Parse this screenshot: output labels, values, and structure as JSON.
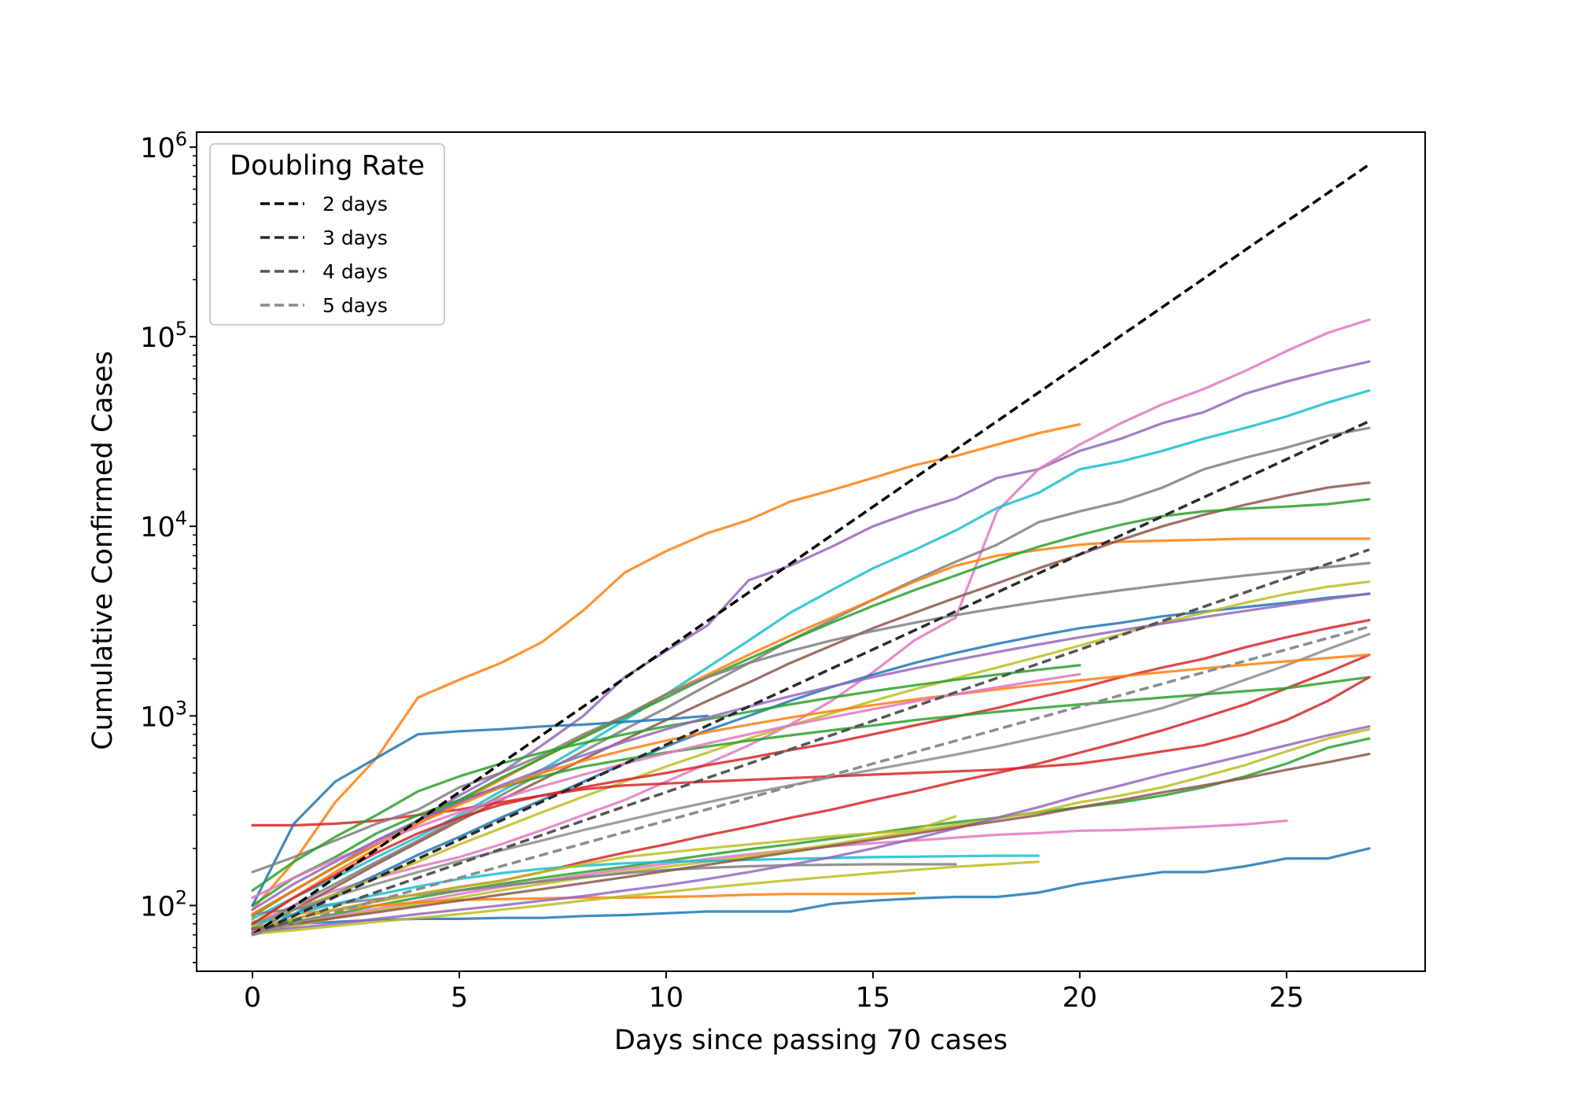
{
  "chart_data": {
    "type": "line",
    "title": "",
    "xlabel": "Days since passing 70 cases",
    "ylabel": "Cumulative Confirmed Cases",
    "x_scale": "linear",
    "y_scale": "log",
    "xlim": [
      -1.35,
      28.35
    ],
    "ylim": [
      45,
      1200000
    ],
    "x_ticks": [
      0,
      5,
      10,
      15,
      20,
      25
    ],
    "y_ticks": [
      {
        "value": 100,
        "base": "10",
        "exp": "2"
      },
      {
        "value": 1000,
        "base": "10",
        "exp": "3"
      },
      {
        "value": 10000,
        "base": "10",
        "exp": "4"
      },
      {
        "value": 100000,
        "base": "10",
        "exp": "5"
      },
      {
        "value": 1000000,
        "base": "10",
        "exp": "6"
      }
    ],
    "grid": false,
    "legend": {
      "title": "Doubling Rate",
      "placement": "top-left",
      "entries": [
        "2 days",
        "3 days",
        "4 days",
        "5 days"
      ]
    },
    "reference_lines": [
      {
        "name": "2 days",
        "doubling_days": 2,
        "start": 70,
        "x": [
          0,
          27
        ],
        "color": "#000000"
      },
      {
        "name": "3 days",
        "doubling_days": 3,
        "start": 70,
        "x": [
          0,
          27
        ],
        "color": "#2b2b2b"
      },
      {
        "name": "4 days",
        "doubling_days": 4,
        "start": 70,
        "x": [
          0,
          27
        ],
        "color": "#555555"
      },
      {
        "name": "5 days",
        "doubling_days": 5,
        "start": 70,
        "x": [
          0,
          27
        ],
        "color": "#8c8c8c"
      }
    ],
    "series": [
      {
        "color": "#ff7f0e",
        "values": [
          95,
          170,
          350,
          600,
          1250,
          1550,
          1900,
          2450,
          3600,
          5700,
          7400,
          9200,
          10800,
          13500,
          15500,
          18000,
          21000,
          23500,
          27000,
          31000,
          34500
        ]
      },
      {
        "color": "#9467bd",
        "values": [
          90,
          120,
          160,
          220,
          280,
          380,
          500,
          700,
          1000,
          1600,
          2200,
          3000,
          5200,
          6200,
          7800,
          10000,
          12000,
          14000,
          18000,
          20000,
          25000,
          29000,
          35000,
          40000,
          50000,
          58000,
          66000,
          74000
        ]
      },
      {
        "color": "#e377c2",
        "values": [
          80,
          100,
          120,
          140,
          160,
          180,
          210,
          250,
          300,
          360,
          450,
          560,
          700,
          900,
          1200,
          1700,
          2500,
          3300,
          12000,
          20000,
          27000,
          35000,
          44000,
          53000,
          66000,
          84000,
          105000,
          123000
        ]
      },
      {
        "color": "#17becf",
        "values": [
          85,
          110,
          140,
          180,
          230,
          300,
          400,
          520,
          700,
          950,
          1300,
          1800,
          2500,
          3500,
          4600,
          6000,
          7500,
          9500,
          12500,
          15000,
          20000,
          22000,
          25000,
          29000,
          33000,
          38000,
          45000,
          52000
        ]
      },
      {
        "color": "#7f7f7f",
        "values": [
          75,
          100,
          130,
          170,
          220,
          290,
          380,
          500,
          650,
          850,
          1100,
          1450,
          1900,
          2500,
          3200,
          4100,
          5200,
          6500,
          8000,
          10500,
          12000,
          13500,
          16000,
          20000,
          23000,
          26000,
          30000,
          33000
        ]
      },
      {
        "color": "#ff7f0e",
        "values": [
          80,
          110,
          150,
          200,
          270,
          350,
          460,
          600,
          780,
          1000,
          1300,
          1650,
          2100,
          2650,
          3300,
          4100,
          5100,
          6200,
          7000,
          7500,
          8000,
          8300,
          8400,
          8500,
          8600,
          8600,
          8600,
          8600
        ]
      },
      {
        "color": "#8c564b",
        "values": [
          72,
          95,
          125,
          165,
          215,
          280,
          360,
          460,
          590,
          750,
          950,
          1200,
          1500,
          1900,
          2350,
          2900,
          3500,
          4200,
          5000,
          6000,
          7100,
          8500,
          10000,
          11500,
          13000,
          14500,
          16000,
          17000
        ]
      },
      {
        "color": "#2ca02c",
        "values": [
          88,
          120,
          160,
          210,
          280,
          360,
          470,
          600,
          770,
          980,
          1250,
          1600,
          2000,
          2500,
          3100,
          3800,
          4600,
          5500,
          6600,
          7800,
          9000,
          10200,
          11300,
          12000,
          12400,
          12700,
          13100,
          13900
        ]
      },
      {
        "color": "#1f77b4",
        "values": [
          70,
          90,
          115,
          145,
          185,
          230,
          290,
          360,
          450,
          560,
          690,
          840,
          1000,
          1200,
          1420,
          1650,
          1900,
          2150,
          2400,
          2650,
          2900,
          3100,
          3350,
          3550,
          3750,
          3950,
          4200,
          4400
        ]
      },
      {
        "color": "#bcbd22",
        "values": [
          78,
          95,
          115,
          140,
          170,
          210,
          255,
          310,
          375,
          450,
          540,
          640,
          760,
          890,
          1030,
          1200,
          1380,
          1580,
          1800,
          2050,
          2350,
          2700,
          3100,
          3500,
          3950,
          4400,
          4800,
          5100
        ]
      },
      {
        "color": "#d62728",
        "values": [
          75,
          85,
          95,
          105,
          115,
          125,
          135,
          150,
          170,
          190,
          210,
          235,
          260,
          290,
          320,
          360,
          400,
          450,
          500,
          560,
          640,
          730,
          840,
          980,
          1150,
          1400,
          1700,
          2100
        ]
      },
      {
        "color": "#2ca02c",
        "values": [
          76,
          82,
          90,
          100,
          110,
          120,
          130,
          140,
          150,
          160,
          172,
          185,
          198,
          210,
          225,
          240,
          258,
          275,
          290,
          310,
          330,
          350,
          380,
          420,
          480,
          560,
          680,
          760
        ]
      },
      {
        "color": "#1f77b4",
        "values": [
          72,
          80,
          82,
          84,
          85,
          85,
          86,
          86,
          88,
          89,
          91,
          93,
          93,
          93,
          102,
          106,
          109,
          111,
          111,
          117,
          130,
          140,
          150,
          150,
          161,
          177,
          177,
          200
        ]
      },
      {
        "color": "#e377c2",
        "values": [
          73,
          80,
          88,
          96,
          105,
          115,
          125,
          135,
          145,
          155,
          166,
          176,
          186,
          196,
          205,
          213,
          220,
          228,
          236,
          241,
          248,
          250,
          255,
          261,
          268,
          280
        ]
      },
      {
        "color": "#bcbd22",
        "values": [
          70,
          78,
          86,
          94,
          102,
          110,
          120,
          130,
          140,
          150,
          160,
          170,
          182,
          195,
          210,
          228,
          246,
          266,
          288,
          312,
          350,
          380,
          420,
          480,
          550,
          650,
          760,
          850
        ]
      },
      {
        "color": "#8c8c8c",
        "values": [
          80,
          95,
          112,
          130,
          150,
          172,
          195,
          220,
          250,
          280,
          315,
          350,
          390,
          430,
          475,
          520,
          570,
          625,
          690,
          770,
          860,
          970,
          1100,
          1300,
          1550,
          1850,
          2250,
          2700
        ]
      },
      {
        "color": "#ff7f0e",
        "values": [
          82,
          90,
          95,
          100,
          104,
          107,
          108,
          109,
          110,
          110,
          111,
          112,
          114,
          115,
          115,
          115,
          116
        ]
      },
      {
        "color": "#7f7f7f",
        "values": [
          90,
          96,
          102,
          108,
          114,
          120,
          127,
          134,
          141,
          148,
          154,
          158,
          161,
          163,
          164,
          165,
          165,
          165
        ]
      },
      {
        "color": "#17becf",
        "values": [
          80,
          90,
          102,
          114,
          126,
          138,
          148,
          156,
          162,
          167,
          170,
          172,
          174,
          176,
          178,
          180,
          181,
          182,
          183,
          183
        ]
      },
      {
        "color": "#bcbd22",
        "values": [
          75,
          85,
          95,
          105,
          115,
          125,
          135,
          150,
          165,
          180,
          190,
          200,
          210,
          220,
          232,
          240,
          250,
          295
        ]
      },
      {
        "color": "#d62728",
        "values": [
          265,
          265,
          270,
          280,
          300,
          320,
          350,
          380,
          420,
          460,
          500,
          550,
          600,
          660,
          720,
          800,
          890,
          990,
          1100,
          1250,
          1400,
          1600,
          1800,
          2000,
          2300,
          2600,
          2900,
          3200
        ]
      },
      {
        "color": "#2ca02c",
        "values": [
          100,
          140,
          180,
          240,
          300,
          360,
          420,
          480,
          540,
          590,
          640,
          690,
          740,
          790,
          840,
          890,
          950,
          1000,
          1050,
          1100,
          1150,
          1200,
          1250,
          1300,
          1350,
          1400,
          1500,
          1600
        ]
      },
      {
        "color": "#1f77b4",
        "values": [
          100,
          270,
          450,
          600,
          800,
          830,
          850,
          880,
          900,
          930,
          960,
          1000
        ]
      },
      {
        "color": "#7f7f7f",
        "values": [
          150,
          180,
          220,
          270,
          320,
          420,
          500,
          620,
          800,
          1000,
          1300,
          1600,
          1900,
          2200,
          2500,
          2800,
          3100,
          3400,
          3700,
          4000,
          4300,
          4600,
          4900,
          5200,
          5500,
          5800,
          6100,
          6400
        ]
      },
      {
        "color": "#9467bd",
        "values": [
          72,
          76,
          80,
          85,
          90,
          95,
          100,
          106,
          112,
          120,
          128,
          138,
          150,
          164,
          180,
          200,
          225,
          255,
          290,
          330,
          380,
          430,
          490,
          550,
          620,
          700,
          790,
          880
        ]
      },
      {
        "color": "#8c564b",
        "values": [
          75,
          80,
          86,
          92,
          99,
          106,
          114,
          122,
          131,
          141,
          152,
          164,
          177,
          191,
          206,
          222,
          239,
          258,
          278,
          300,
          330,
          360,
          395,
          430,
          470,
          520,
          570,
          630
        ]
      },
      {
        "color": "#d62728",
        "values": [
          80,
          110,
          145,
          190,
          240,
          290,
          340,
          380,
          410,
          430,
          440,
          450,
          460,
          470,
          480,
          490,
          500,
          510,
          520,
          540,
          560,
          600,
          650,
          700,
          800,
          950,
          1200,
          1600
        ]
      },
      {
        "color": "#2ca02c",
        "values": [
          120,
          170,
          230,
          300,
          400,
          480,
          560,
          640,
          720,
          800,
          880,
          960,
          1050,
          1150,
          1250,
          1350,
          1450,
          1550,
          1650,
          1750,
          1850
        ]
      },
      {
        "color": "#ff7f0e",
        "values": [
          90,
          120,
          160,
          210,
          270,
          340,
          420,
          500,
          580,
          660,
          740,
          820,
          900,
          980,
          1060,
          1140,
          1220,
          1300,
          1380,
          1460,
          1540,
          1620,
          1700,
          1780,
          1860,
          1940,
          2020,
          2100
        ]
      },
      {
        "color": "#e377c2",
        "values": [
          110,
          140,
          175,
          215,
          260,
          310,
          365,
          425,
          490,
          560,
          635,
          715,
          800,
          890,
          985,
          1085,
          1190,
          1300,
          1415,
          1535,
          1660
        ]
      },
      {
        "color": "#bcbd22",
        "values": [
          71,
          74,
          78,
          82,
          86,
          90,
          95,
          100,
          106,
          112,
          118,
          124,
          130,
          136,
          142,
          148,
          154,
          160,
          165,
          170
        ]
      },
      {
        "color": "#9467bd",
        "values": [
          95,
          130,
          170,
          220,
          280,
          350,
          430,
          520,
          620,
          730,
          850,
          980,
          1120,
          1270,
          1430,
          1600,
          1780,
          1970,
          2170,
          2380,
          2600,
          2830,
          3070,
          3320,
          3580,
          3850,
          4130,
          4420
        ]
      }
    ]
  }
}
